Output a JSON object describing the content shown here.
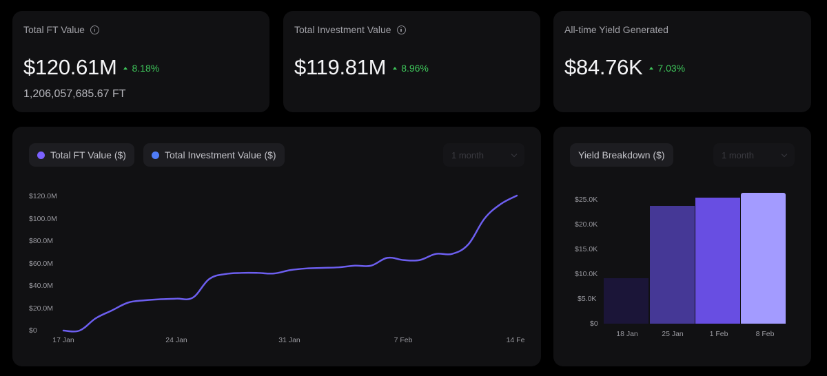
{
  "cards": [
    {
      "title": "Total FT Value",
      "has_info": true,
      "value": "$120.61M",
      "change": "8.18%",
      "sub": "1,206,057,685.67 FT"
    },
    {
      "title": "Total Investment Value",
      "has_info": true,
      "value": "$119.81M",
      "change": "8.96%",
      "sub": ""
    },
    {
      "title": "All-time Yield Generated",
      "has_info": false,
      "value": "$84.76K",
      "change": "7.03%",
      "sub": ""
    }
  ],
  "line_panel": {
    "legend": [
      {
        "label": "Total FT Value ($)",
        "color": "#7b61ff"
      },
      {
        "label": "Total Investment Value ($)",
        "color": "#4f7cf7"
      }
    ],
    "range_select": "1 month"
  },
  "bar_panel": {
    "legend_label": "Yield Breakdown ($)",
    "range_select": "1 month"
  },
  "colors": {
    "positive": "#3ec55a",
    "line": "#6d5ff0",
    "bars": [
      "#1b1538",
      "#453896",
      "#684ee2",
      "#a39bff"
    ]
  },
  "chart_data": [
    {
      "type": "line",
      "title": "",
      "xlabel": "",
      "ylabel": "",
      "ylim": [
        0,
        120000000
      ],
      "yticks": [
        "$0",
        "$20.0M",
        "$40.0M",
        "$60.0M",
        "$80.0M",
        "$100.0M",
        "$120.0M"
      ],
      "xticks": [
        "17 Jan",
        "24 Jan",
        "31 Jan",
        "7 Feb",
        "14 Fe"
      ],
      "legend": [
        "Total FT Value ($)",
        "Total Investment Value ($)"
      ],
      "grid": false,
      "x": [
        "17 Jan",
        "18 Jan",
        "19 Jan",
        "20 Jan",
        "21 Jan",
        "22 Jan",
        "23 Jan",
        "24 Jan",
        "25 Jan",
        "26 Jan",
        "27 Jan",
        "28 Jan",
        "29 Jan",
        "30 Jan",
        "31 Jan",
        "1 Feb",
        "2 Feb",
        "3 Feb",
        "4 Feb",
        "5 Feb",
        "6 Feb",
        "7 Feb",
        "8 Feb",
        "9 Feb",
        "10 Feb",
        "11 Feb",
        "12 Feb",
        "13 Feb",
        "14 Feb"
      ],
      "series": [
        {
          "name": "Total FT Value ($)",
          "values_millions": [
            0,
            0,
            11,
            18,
            25,
            27,
            28,
            28.5,
            29.5,
            46,
            50.5,
            51.5,
            51.5,
            51,
            54,
            55.5,
            56,
            56.5,
            58,
            58,
            65,
            63,
            63,
            68.5,
            68.5,
            77,
            100,
            113,
            120.6
          ]
        }
      ]
    },
    {
      "type": "bar",
      "title": "Yield Breakdown ($)",
      "xlabel": "",
      "ylabel": "",
      "ylim": [
        0,
        25000
      ],
      "yticks": [
        "$0",
        "$5.0K",
        "$10.0K",
        "$15.0K",
        "$20.0K",
        "$25.0K"
      ],
      "categories": [
        "18 Jan",
        "25 Jan",
        "1 Feb",
        "8 Feb"
      ],
      "values": [
        9200,
        23700,
        25400,
        26400
      ],
      "grid": false
    }
  ]
}
